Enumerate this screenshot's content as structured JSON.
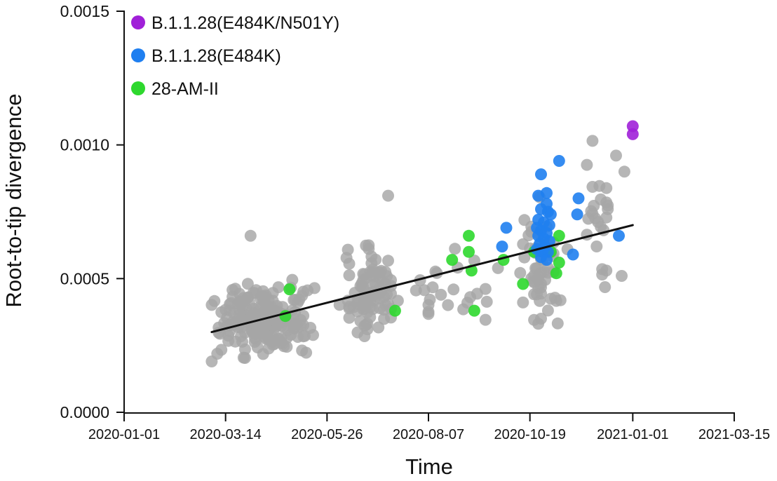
{
  "chart_data": {
    "type": "scatter",
    "xlabel": "Time",
    "ylabel": "Root-to-tip divergence",
    "x_ticks": [
      "2020-01-01",
      "2020-03-14",
      "2020-05-26",
      "2020-08-07",
      "2020-10-19",
      "2021-01-01",
      "2021-03-15"
    ],
    "y_ticks": [
      "0.0000",
      "0.0005",
      "0.0010",
      "0.0015"
    ],
    "xlim": [
      "2020-01-01",
      "2021-03-15"
    ],
    "ylim": [
      0.0,
      0.0015
    ],
    "grid": false,
    "legend_position": "top-left",
    "legend": [
      {
        "label": "B.1.1.28(E484K/N501Y)",
        "color": "#a020d8"
      },
      {
        "label": "B.1.1.28(E484K)",
        "color": "#1f7ff0"
      },
      {
        "label": "28-AM-II",
        "color": "#2ed82e"
      }
    ],
    "background_color": "#a6a6a6",
    "trend_line": {
      "color": "#111111",
      "start": [
        "2020-03-04",
        0.0003
      ],
      "end": [
        "2021-01-01",
        0.0007
      ]
    },
    "series": [
      {
        "name": "B.1.1.28(E484K/N501Y)",
        "color": "#a020d8",
        "points": [
          [
            "2021-01-01",
            0.00107
          ],
          [
            "2021-01-01",
            0.00104
          ]
        ]
      },
      {
        "name": "B.1.1.28(E484K)",
        "color": "#1f7ff0",
        "points": [
          [
            "2020-11-09",
            0.00094
          ],
          [
            "2020-10-27",
            0.00089
          ],
          [
            "2020-10-31",
            0.00082
          ],
          [
            "2020-10-25",
            0.00081
          ],
          [
            "2020-11-23",
            0.0008
          ],
          [
            "2020-10-31",
            0.00078
          ],
          [
            "2020-10-27",
            0.00076
          ],
          [
            "2020-11-01",
            0.00075
          ],
          [
            "2020-11-03",
            0.00074
          ],
          [
            "2020-11-22",
            0.00074
          ],
          [
            "2020-10-25",
            0.00072
          ],
          [
            "2020-10-29",
            0.00071
          ],
          [
            "2020-11-02",
            0.0007
          ],
          [
            "2020-10-24",
            0.00069
          ],
          [
            "2020-10-27",
            0.00068
          ],
          [
            "2020-10-31",
            0.00067
          ],
          [
            "2020-10-02",
            0.00069
          ],
          [
            "2020-10-25",
            0.00066
          ],
          [
            "2020-10-29",
            0.00065
          ],
          [
            "2020-12-22",
            0.00066
          ],
          [
            "2020-11-02",
            0.00064
          ],
          [
            "2020-10-26",
            0.00063
          ],
          [
            "2020-10-30",
            0.00062
          ],
          [
            "2020-09-29",
            0.00062
          ],
          [
            "2020-10-24",
            0.00061
          ],
          [
            "2020-10-28",
            0.0006
          ],
          [
            "2020-11-01",
            0.0006
          ],
          [
            "2020-11-19",
            0.00059
          ],
          [
            "2020-10-27",
            0.00058
          ],
          [
            "2020-10-31",
            0.00057
          ]
        ]
      },
      {
        "name": "28-AM-II",
        "color": "#2ed82e",
        "points": [
          [
            "2020-04-29",
            0.00046
          ],
          [
            "2020-04-26",
            0.00036
          ],
          [
            "2020-07-14",
            0.00038
          ],
          [
            "2020-08-24",
            0.00057
          ],
          [
            "2020-09-05",
            0.00066
          ],
          [
            "2020-09-05",
            0.0006
          ],
          [
            "2020-09-07",
            0.00053
          ],
          [
            "2020-09-09",
            0.00038
          ],
          [
            "2020-09-30",
            0.00057
          ],
          [
            "2020-10-14",
            0.00048
          ],
          [
            "2020-10-22",
            0.0006
          ],
          [
            "2020-11-03",
            0.0006
          ],
          [
            "2020-11-09",
            0.00066
          ],
          [
            "2020-11-09",
            0.00056
          ],
          [
            "2020-11-07",
            0.00052
          ]
        ]
      }
    ]
  }
}
